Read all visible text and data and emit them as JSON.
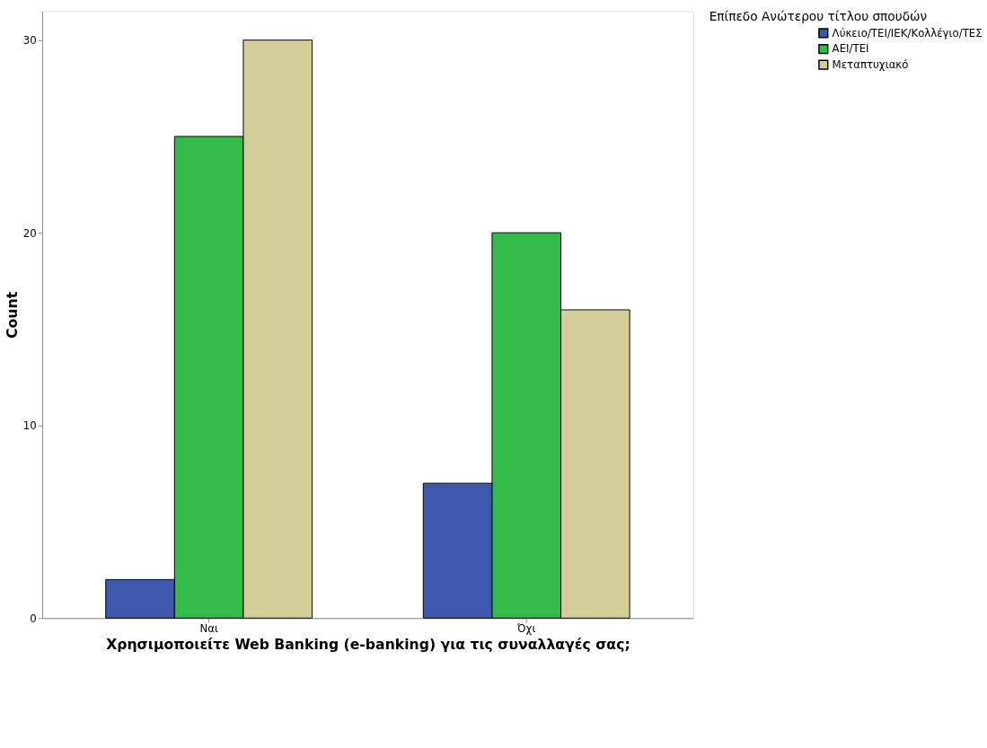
{
  "chart_data": {
    "type": "bar",
    "xlabel": "Χρησιμοποιείτε Web Banking (e-banking) για τις συναλλαγές σας;",
    "ylabel": "Count",
    "legend_title": "Επίπεδο Ανώτερου τίτλου σπουδών",
    "categories": [
      "Ναι",
      "Όχι"
    ],
    "series": [
      {
        "name": "Λύκειο/ΤΕΙ/ΙΕΚ/Κολλέγιο/ΤΕΣ",
        "color": "#3e58ac",
        "values": [
          2,
          7
        ]
      },
      {
        "name": "ΑΕΙ/ΤΕΙ",
        "color": "#33bb4a",
        "values": [
          25,
          20
        ]
      },
      {
        "name": "Μεταπτυχιακό",
        "color": "#d3ce97",
        "values": [
          30,
          16
        ]
      }
    ],
    "ylim": [
      0,
      31.5
    ],
    "yticks": [
      0,
      10,
      20,
      30
    ],
    "grid": false,
    "legend": "top right"
  }
}
